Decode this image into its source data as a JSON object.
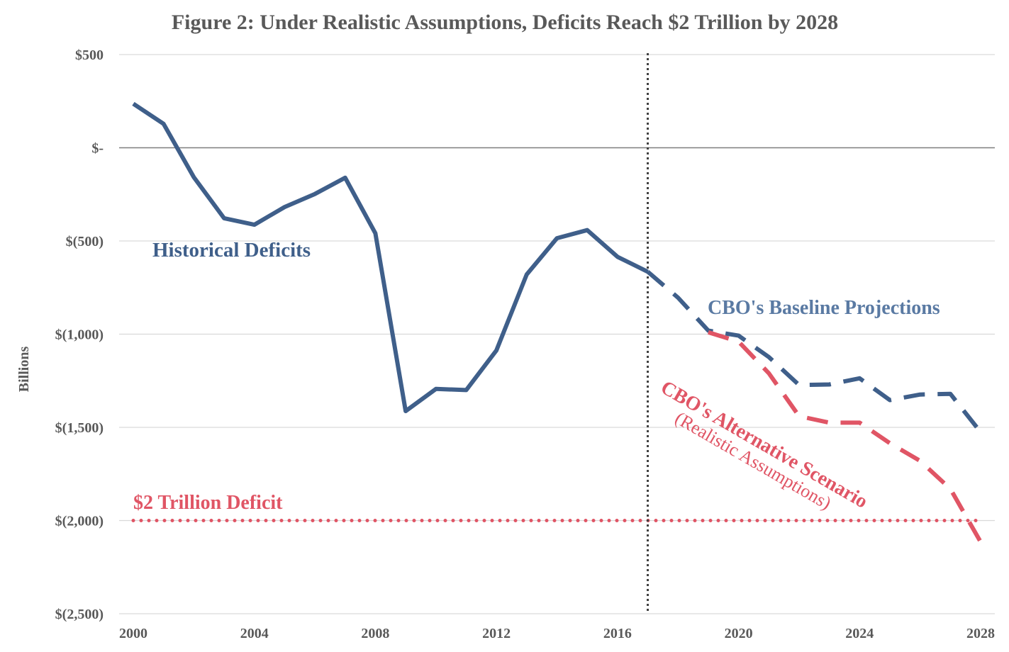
{
  "chart_data": {
    "type": "line",
    "title": "Figure 2: Under Realistic Assumptions, Deficits Reach $2 Trillion by 2028",
    "xlabel": "",
    "ylabel": "Billions",
    "xlim": [
      2000,
      2028
    ],
    "ylim": [
      -2500,
      500
    ],
    "x_ticks": [
      2000,
      2004,
      2008,
      2012,
      2016,
      2020,
      2024,
      2028
    ],
    "x_tick_labels": [
      "2000",
      "2004",
      "2008",
      "2012",
      "2016",
      "2020",
      "2024",
      "2028"
    ],
    "y_ticks": [
      500,
      0,
      -500,
      -1000,
      -1500,
      -2000,
      -2500
    ],
    "y_tick_labels": [
      "$500",
      "$-",
      "$(500)",
      "$(1,000)",
      "$(1,500)",
      "$(2,000)",
      "$(2,500)"
    ],
    "grid": true,
    "legend": "none",
    "vertical_marker_x": 2017,
    "reference_line": {
      "value": -2000,
      "label": "$2 Trillion Deficit",
      "color": "#e05565"
    },
    "series": [
      {
        "name": "Historical Deficits",
        "style": "solid",
        "color": "#3f5f8a",
        "x": [
          2000,
          2001,
          2002,
          2003,
          2004,
          2005,
          2006,
          2007,
          2008,
          2009,
          2010,
          2011,
          2012,
          2013,
          2014,
          2015,
          2016,
          2017
        ],
        "y": [
          236,
          128,
          -158,
          -378,
          -413,
          -318,
          -248,
          -161,
          -459,
          -1413,
          -1294,
          -1300,
          -1087,
          -680,
          -485,
          -442,
          -585,
          -665
        ]
      },
      {
        "name": "CBO's Baseline Projections",
        "style": "dashed",
        "color": "#3f5f8a",
        "x": [
          2017,
          2018,
          2019,
          2020,
          2021,
          2022,
          2023,
          2024,
          2025,
          2026,
          2027,
          2028
        ],
        "y": [
          -665,
          -804,
          -981,
          -1008,
          -1123,
          -1273,
          -1270,
          -1237,
          -1354,
          -1324,
          -1320,
          -1526
        ]
      },
      {
        "name": "CBO's Alternative Scenario",
        "subtitle": "(Realistic Assumptions)",
        "style": "dashed",
        "color": "#e05565",
        "x": [
          2019,
          2020,
          2021,
          2022,
          2023,
          2024,
          2025,
          2026,
          2027,
          2028
        ],
        "y": [
          -990,
          -1040,
          -1210,
          -1440,
          -1475,
          -1475,
          -1585,
          -1680,
          -1830,
          -2115
        ]
      }
    ],
    "annotations": {
      "historical": "Historical Deficits",
      "baseline": "CBO's Baseline Projections",
      "alternative": "CBO's Alternative Scenario",
      "alternative_sub": "(Realistic Assumptions)",
      "reference": "$2 Trillion Deficit"
    },
    "colors": {
      "blue": "#3f5f8a",
      "blue_label": "#5a7aa3",
      "red": "#e05565",
      "grid": "#d9d9d9",
      "zero": "#7f7f7f",
      "text": "#595959",
      "marker": "#404040"
    }
  }
}
